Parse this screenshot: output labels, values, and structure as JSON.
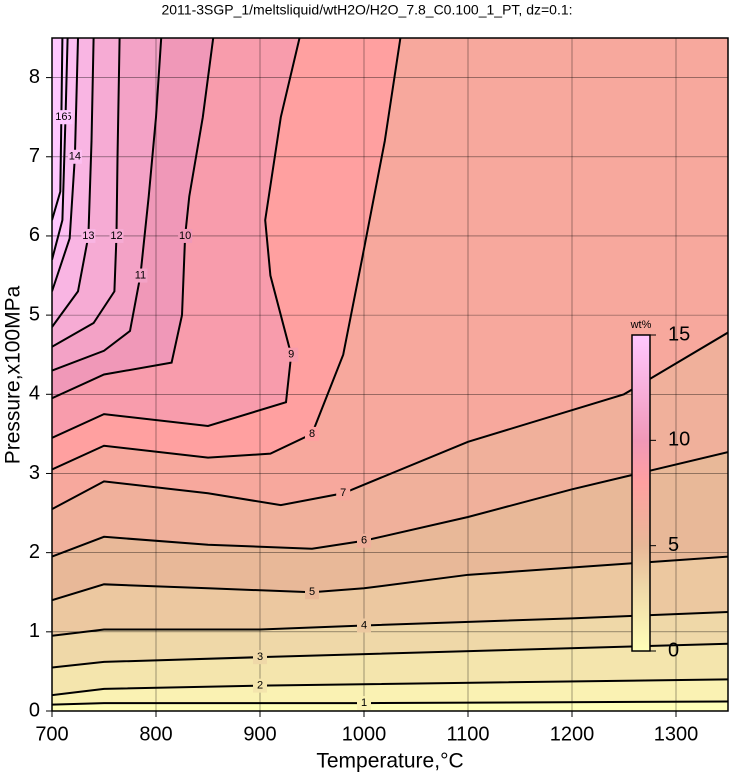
{
  "chart_data": {
    "type": "contour",
    "title": "2011-3SGP_1/meltsliquid/wtH2O/H2O_7.8_C0.100_1_PT, dz=0.1:",
    "x_label": "Temperature,°C",
    "y_label": "Pressure,x100MPa",
    "xlim": [
      700,
      1350
    ],
    "ylim": [
      0,
      8.5
    ],
    "xticks": [
      700,
      800,
      900,
      1000,
      1100,
      1200,
      1300
    ],
    "yticks": [
      0,
      1,
      2,
      3,
      4,
      5,
      6,
      7,
      8
    ],
    "grid": true,
    "colorbar_label": "wt%",
    "clim": [
      0,
      15
    ],
    "cticks": [
      0,
      5,
      10,
      15
    ],
    "colormap": [
      {
        "value": 0,
        "color": "#ffffb8"
      },
      {
        "value": 3,
        "color": "#efd8a8"
      },
      {
        "value": 5,
        "color": "#e8b898"
      },
      {
        "value": 8,
        "color": "#ffa0a0"
      },
      {
        "value": 10,
        "color": "#f098b8"
      },
      {
        "value": 15,
        "color": "#ffc8ff"
      }
    ],
    "contours": [
      {
        "level": 1,
        "x": [
          700,
          750,
          1000,
          1350
        ],
        "y": [
          0.08,
          0.1,
          0.1,
          0.12
        ]
      },
      {
        "level": 2,
        "x": [
          700,
          750,
          900,
          1350
        ],
        "y": [
          0.2,
          0.28,
          0.32,
          0.4
        ]
      },
      {
        "level": 3,
        "x": [
          700,
          750,
          900,
          1350
        ],
        "y": [
          0.55,
          0.62,
          0.68,
          0.85
        ]
      },
      {
        "level": 4,
        "x": [
          700,
          750,
          900,
          1000,
          1200,
          1350
        ],
        "y": [
          0.95,
          1.03,
          1.03,
          1.08,
          1.17,
          1.25
        ]
      },
      {
        "level": 5,
        "x": [
          700,
          750,
          850,
          950,
          1000,
          1100,
          1350
        ],
        "y": [
          1.4,
          1.6,
          1.55,
          1.5,
          1.55,
          1.72,
          1.95
        ]
      },
      {
        "level": 6,
        "x": [
          700,
          750,
          850,
          950,
          1000,
          1100,
          1200,
          1350
        ],
        "y": [
          1.95,
          2.2,
          2.1,
          2.05,
          2.15,
          2.45,
          2.8,
          3.27
        ]
      },
      {
        "level": 7,
        "x": [
          700,
          750,
          850,
          920,
          980,
          1100,
          1250,
          1350
        ],
        "y": [
          2.55,
          2.9,
          2.75,
          2.6,
          2.75,
          3.4,
          4.0,
          4.78
        ]
      },
      {
        "level": 8,
        "x": [
          700,
          750,
          850,
          910,
          950,
          980,
          998,
          1020,
          1035
        ],
        "y": [
          3.05,
          3.35,
          3.2,
          3.25,
          3.5,
          4.5,
          5.7,
          7.2,
          8.5
        ]
      },
      {
        "level": 9,
        "x": [
          700,
          750,
          850,
          925,
          930,
          910,
          905,
          920,
          938
        ],
        "y": [
          3.45,
          3.75,
          3.6,
          3.9,
          4.5,
          5.5,
          6.2,
          7.5,
          8.5
        ]
      },
      {
        "level": 10,
        "x": [
          700,
          750,
          815,
          825,
          828,
          832,
          845,
          855
        ],
        "y": [
          3.95,
          4.25,
          4.4,
          5.0,
          6.0,
          6.5,
          7.5,
          8.5
        ]
      },
      {
        "level": 11,
        "x": [
          700,
          750,
          775,
          785,
          793,
          800,
          805
        ],
        "y": [
          4.3,
          4.55,
          4.8,
          5.5,
          6.5,
          7.5,
          8.5
        ]
      },
      {
        "level": 12,
        "x": [
          700,
          740,
          760,
          762,
          763,
          765
        ],
        "y": [
          4.6,
          4.9,
          5.3,
          6.0,
          7.0,
          8.5
        ]
      },
      {
        "level": 13,
        "x": [
          700,
          725,
          735,
          738,
          740
        ],
        "y": [
          4.85,
          5.3,
          6.0,
          7.2,
          8.5
        ]
      },
      {
        "level": 14,
        "x": [
          700,
          717,
          722,
          725
        ],
        "y": [
          5.3,
          5.97,
          7.0,
          8.5
        ]
      },
      {
        "level": 15,
        "x": [
          700,
          710,
          713,
          715
        ],
        "y": [
          5.7,
          6.2,
          7.5,
          8.5
        ]
      },
      {
        "level": 16,
        "x": [
          700,
          708,
          709,
          710
        ],
        "y": [
          6.2,
          6.56,
          7.5,
          8.5
        ]
      }
    ]
  }
}
